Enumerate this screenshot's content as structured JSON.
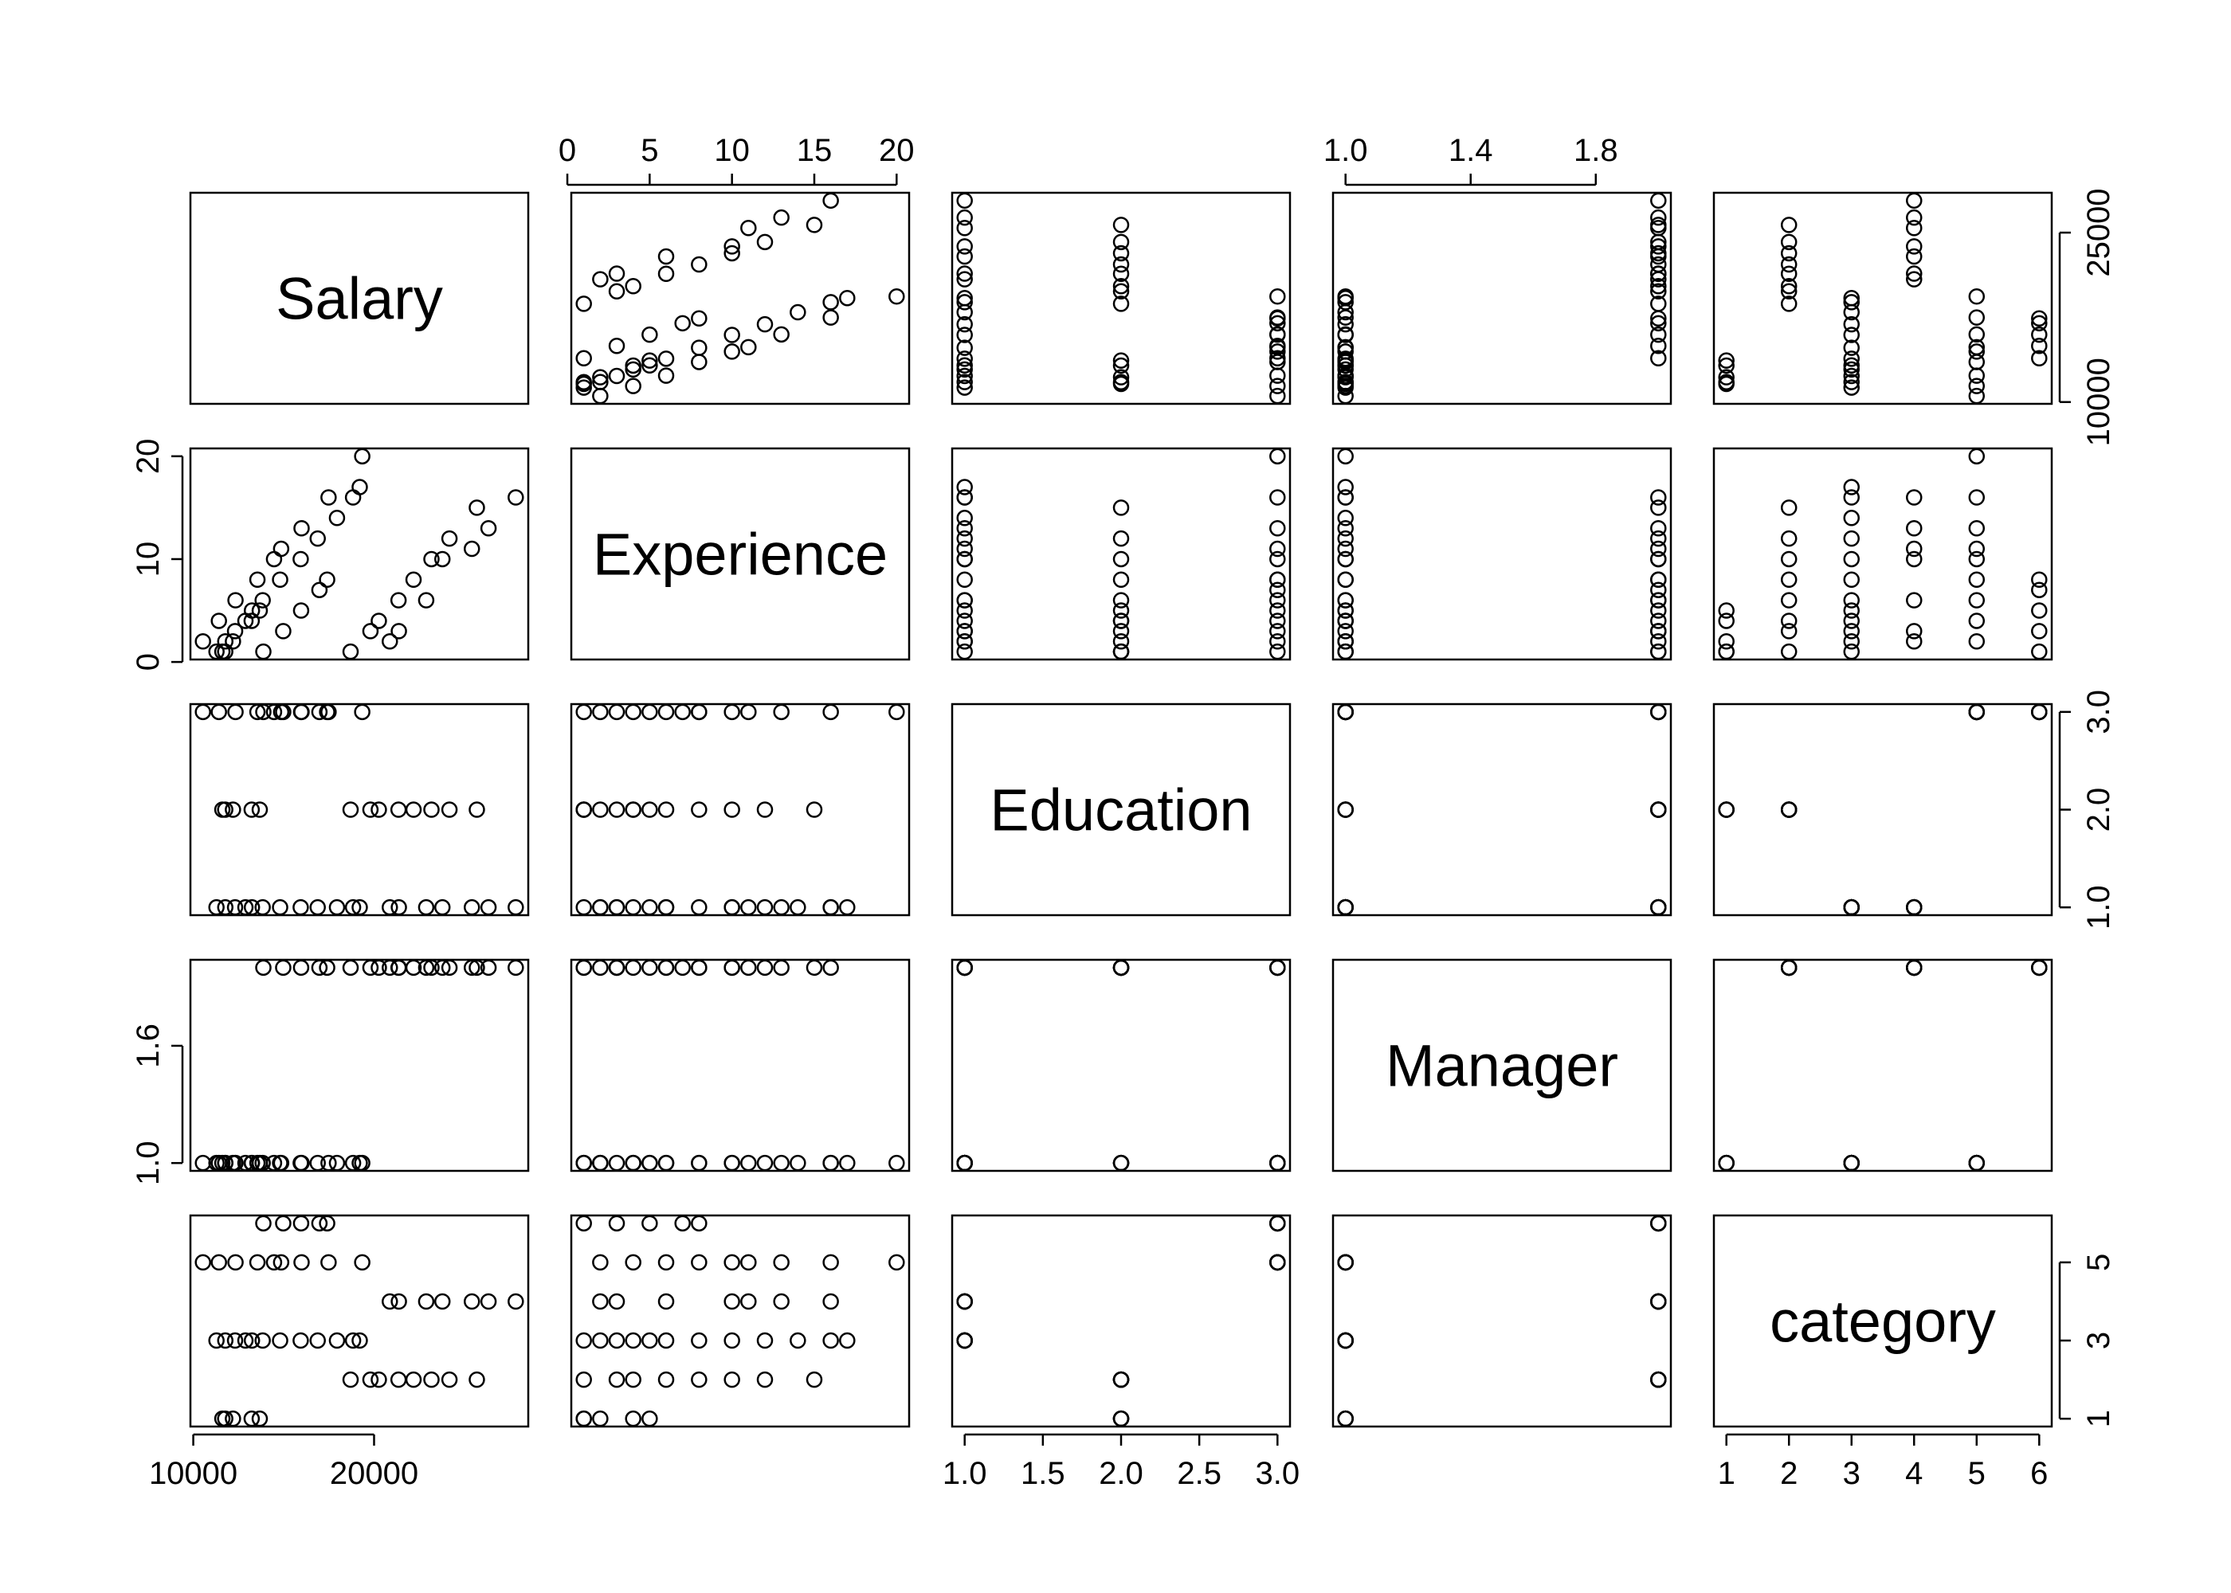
{
  "chart_data": {
    "type": "scatter_matrix",
    "variables": [
      {
        "name": "Salary",
        "lim": [
          9843,
          28529
        ],
        "col_ticks": [
          10000,
          20000
        ],
        "row_ticks": [
          10000,
          25000
        ],
        "values": [
          13876,
          11608,
          18701,
          11283,
          11767,
          20872,
          11772,
          10535,
          12195,
          12313,
          14975,
          21371,
          19800,
          11417,
          20263,
          13231,
          12884,
          13245,
          13677,
          15965,
          12336,
          21352,
          13839,
          22884,
          16978,
          14803,
          17404,
          22184,
          13548,
          14467,
          15942,
          23174,
          23780,
          25410,
          14861,
          16882,
          24170,
          15990,
          26330,
          17949,
          25685,
          27837,
          18838,
          17483,
          19207,
          19346
        ]
      },
      {
        "name": "Experience",
        "lim": [
          0.24,
          20.76
        ],
        "col_ticks": [
          0,
          5,
          10,
          15,
          20
        ],
        "row_ticks": [
          0,
          10,
          20
        ],
        "values": [
          1,
          1,
          1,
          1,
          1,
          2,
          2,
          2,
          2,
          3,
          3,
          3,
          3,
          4,
          4,
          4,
          4,
          5,
          5,
          5,
          6,
          6,
          6,
          6,
          7,
          8,
          8,
          8,
          8,
          10,
          10,
          10,
          10,
          11,
          11,
          12,
          12,
          13,
          13,
          14,
          15,
          16,
          16,
          16,
          17,
          20
        ]
      },
      {
        "name": "Education",
        "lim": [
          0.92,
          3.08
        ],
        "col_ticks": [
          {
            "value": 1,
            "label": "1.0"
          },
          {
            "value": 1.5,
            "label": "1.5"
          },
          {
            "value": 2,
            "label": "2.0"
          },
          {
            "value": 2.5,
            "label": "2.5"
          },
          {
            "value": 3,
            "label": "3.0"
          }
        ],
        "row_ticks": [
          {
            "value": 1,
            "label": "1.0"
          },
          {
            "value": 2,
            "label": "2.0"
          },
          {
            "value": 3,
            "label": "3.0"
          }
        ],
        "values": [
          3,
          2,
          2,
          1,
          2,
          1,
          1,
          3,
          2,
          1,
          3,
          1,
          2,
          3,
          2,
          2,
          1,
          1,
          2,
          3,
          3,
          2,
          1,
          1,
          3,
          1,
          3,
          2,
          3,
          3,
          1,
          2,
          1,
          1,
          3,
          1,
          2,
          3,
          1,
          1,
          2,
          1,
          1,
          3,
          1,
          3
        ]
      },
      {
        "name": "Manager",
        "lim": [
          0.96,
          2.04
        ],
        "col_ticks": [
          {
            "value": 1,
            "label": "1.0"
          },
          1.4,
          1.8
        ],
        "row_ticks": [
          {
            "value": 1,
            "label": "1.0"
          },
          1.6
        ],
        "values": [
          2,
          1,
          2,
          1,
          1,
          2,
          1,
          1,
          1,
          1,
          2,
          2,
          2,
          1,
          2,
          1,
          1,
          1,
          1,
          2,
          1,
          2,
          1,
          2,
          2,
          1,
          2,
          2,
          1,
          1,
          1,
          2,
          2,
          2,
          1,
          1,
          2,
          1,
          2,
          1,
          2,
          2,
          1,
          1,
          1,
          1
        ]
      },
      {
        "name": "category",
        "lim": [
          0.8,
          6.2
        ],
        "col_ticks": [
          1,
          2,
          3,
          4,
          5,
          6
        ],
        "row_ticks": [
          1,
          3,
          5
        ],
        "values": [
          6,
          1,
          2,
          3,
          1,
          4,
          3,
          5,
          1,
          3,
          6,
          4,
          2,
          5,
          2,
          1,
          3,
          3,
          1,
          6,
          5,
          2,
          3,
          4,
          6,
          3,
          6,
          2,
          5,
          5,
          3,
          2,
          4,
          4,
          5,
          3,
          2,
          5,
          4,
          3,
          2,
          4,
          3,
          5,
          3,
          5
        ]
      }
    ]
  }
}
